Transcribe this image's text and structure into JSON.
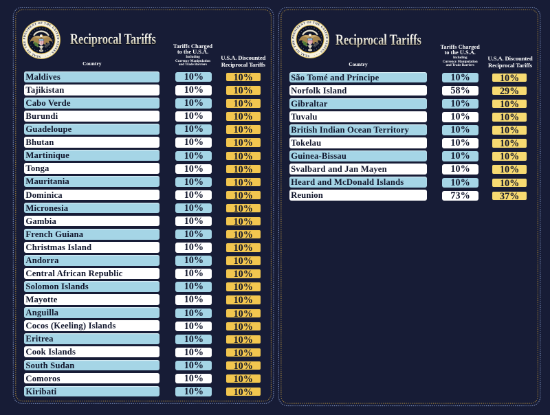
{
  "colors": {
    "background": "#171c36",
    "row_blue": "#a5d5e6",
    "row_white": "#ffffff",
    "gold_left": "#f2c64f",
    "gold_right": "#f7da71",
    "text_navy": "#10152b",
    "cell_border": "#1b2038",
    "dots_blue": "#8ea2cf",
    "dots_gold": "#b28e41"
  },
  "seal": {
    "ring_text": "SEAL OF THE PRESIDENT OF THE UNITED STATES · · ·"
  },
  "panels": [
    {
      "title": "Reciprocal Tariffs",
      "columns": {
        "country": "Country",
        "charged_line1": "Tariffs Charged",
        "charged_line2": "to the U.S.A.",
        "charged_sub1": "Including",
        "charged_sub2": "Currency Manipulation",
        "charged_sub3": "and Trade Barriers",
        "discounted_line1": "U.S.A. Discounted",
        "discounted_line2": "Reciprocal Tariffs"
      },
      "rows": [
        {
          "country": "Maldives",
          "charged": "10%",
          "discounted": "10%"
        },
        {
          "country": "Tajikistan",
          "charged": "10%",
          "discounted": "10%"
        },
        {
          "country": "Cabo Verde",
          "charged": "10%",
          "discounted": "10%"
        },
        {
          "country": "Burundi",
          "charged": "10%",
          "discounted": "10%"
        },
        {
          "country": "Guadeloupe",
          "charged": "10%",
          "discounted": "10%"
        },
        {
          "country": "Bhutan",
          "charged": "10%",
          "discounted": "10%"
        },
        {
          "country": "Martinique",
          "charged": "10%",
          "discounted": "10%"
        },
        {
          "country": "Tonga",
          "charged": "10%",
          "discounted": "10%"
        },
        {
          "country": "Mauritania",
          "charged": "10%",
          "discounted": "10%"
        },
        {
          "country": "Dominica",
          "charged": "10%",
          "discounted": "10%"
        },
        {
          "country": "Micronesia",
          "charged": "10%",
          "discounted": "10%"
        },
        {
          "country": "Gambia",
          "charged": "10%",
          "discounted": "10%"
        },
        {
          "country": "French Guiana",
          "charged": "10%",
          "discounted": "10%"
        },
        {
          "country": "Christmas Island",
          "charged": "10%",
          "discounted": "10%"
        },
        {
          "country": "Andorra",
          "charged": "10%",
          "discounted": "10%"
        },
        {
          "country": "Central African Republic",
          "charged": "10%",
          "discounted": "10%"
        },
        {
          "country": "Solomon Islands",
          "charged": "10%",
          "discounted": "10%"
        },
        {
          "country": "Mayotte",
          "charged": "10%",
          "discounted": "10%"
        },
        {
          "country": "Anguilla",
          "charged": "10%",
          "discounted": "10%"
        },
        {
          "country": "Cocos (Keeling) Islands",
          "charged": "10%",
          "discounted": "10%"
        },
        {
          "country": "Eritrea",
          "charged": "10%",
          "discounted": "10%"
        },
        {
          "country": "Cook Islands",
          "charged": "10%",
          "discounted": "10%"
        },
        {
          "country": "South Sudan",
          "charged": "10%",
          "discounted": "10%"
        },
        {
          "country": "Comoros",
          "charged": "10%",
          "discounted": "10%"
        },
        {
          "country": "Kiribati",
          "charged": "10%",
          "discounted": "10%"
        }
      ]
    },
    {
      "title": "Reciprocal Tariffs",
      "columns": {
        "country": "Country",
        "charged_line1": "Tariffs Charged",
        "charged_line2": "to the U.S.A.",
        "charged_sub1": "Including",
        "charged_sub2": "Currency Manipulation",
        "charged_sub3": "and Trade Barriers",
        "discounted_line1": "U.S.A. Discounted",
        "discounted_line2": "Reciprocal Tariffs"
      },
      "rows": [
        {
          "country": "São Tomé and Príncipe",
          "charged": "10%",
          "discounted": "10%"
        },
        {
          "country": "Norfolk Island",
          "charged": "58%",
          "discounted": "29%"
        },
        {
          "country": "Gibraltar",
          "charged": "10%",
          "discounted": "10%"
        },
        {
          "country": "Tuvalu",
          "charged": "10%",
          "discounted": "10%"
        },
        {
          "country": "British Indian Ocean Territory",
          "charged": "10%",
          "discounted": "10%"
        },
        {
          "country": "Tokelau",
          "charged": "10%",
          "discounted": "10%"
        },
        {
          "country": "Guinea-Bissau",
          "charged": "10%",
          "discounted": "10%"
        },
        {
          "country": "Svalbard and Jan Mayen",
          "charged": "10%",
          "discounted": "10%"
        },
        {
          "country": "Heard and McDonald Islands",
          "charged": "10%",
          "discounted": "10%"
        },
        {
          "country": "Reunion",
          "charged": "73%",
          "discounted": "37%"
        }
      ]
    }
  ],
  "chart_data": {
    "type": "table",
    "title": "Reciprocal Tariffs",
    "columns": [
      "Country",
      "Tariffs Charged to the U.S.A. Including Currency Manipulation and Trade Barriers",
      "U.S.A. Discounted Reciprocal Tariffs"
    ],
    "rows": [
      [
        "Maldives",
        "10%",
        "10%"
      ],
      [
        "Tajikistan",
        "10%",
        "10%"
      ],
      [
        "Cabo Verde",
        "10%",
        "10%"
      ],
      [
        "Burundi",
        "10%",
        "10%"
      ],
      [
        "Guadeloupe",
        "10%",
        "10%"
      ],
      [
        "Bhutan",
        "10%",
        "10%"
      ],
      [
        "Martinique",
        "10%",
        "10%"
      ],
      [
        "Tonga",
        "10%",
        "10%"
      ],
      [
        "Mauritania",
        "10%",
        "10%"
      ],
      [
        "Dominica",
        "10%",
        "10%"
      ],
      [
        "Micronesia",
        "10%",
        "10%"
      ],
      [
        "Gambia",
        "10%",
        "10%"
      ],
      [
        "French Guiana",
        "10%",
        "10%"
      ],
      [
        "Christmas Island",
        "10%",
        "10%"
      ],
      [
        "Andorra",
        "10%",
        "10%"
      ],
      [
        "Central African Republic",
        "10%",
        "10%"
      ],
      [
        "Solomon Islands",
        "10%",
        "10%"
      ],
      [
        "Mayotte",
        "10%",
        "10%"
      ],
      [
        "Anguilla",
        "10%",
        "10%"
      ],
      [
        "Cocos (Keeling) Islands",
        "10%",
        "10%"
      ],
      [
        "Eritrea",
        "10%",
        "10%"
      ],
      [
        "Cook Islands",
        "10%",
        "10%"
      ],
      [
        "South Sudan",
        "10%",
        "10%"
      ],
      [
        "Comoros",
        "10%",
        "10%"
      ],
      [
        "Kiribati",
        "10%",
        "10%"
      ],
      [
        "São Tomé and Príncipe",
        "10%",
        "10%"
      ],
      [
        "Norfolk Island",
        "58%",
        "29%"
      ],
      [
        "Gibraltar",
        "10%",
        "10%"
      ],
      [
        "Tuvalu",
        "10%",
        "10%"
      ],
      [
        "British Indian Ocean Territory",
        "10%",
        "10%"
      ],
      [
        "Tokelau",
        "10%",
        "10%"
      ],
      [
        "Guinea-Bissau",
        "10%",
        "10%"
      ],
      [
        "Svalbard and Jan Mayen",
        "10%",
        "10%"
      ],
      [
        "Heard and McDonald Islands",
        "10%",
        "10%"
      ],
      [
        "Reunion",
        "73%",
        "37%"
      ]
    ]
  }
}
